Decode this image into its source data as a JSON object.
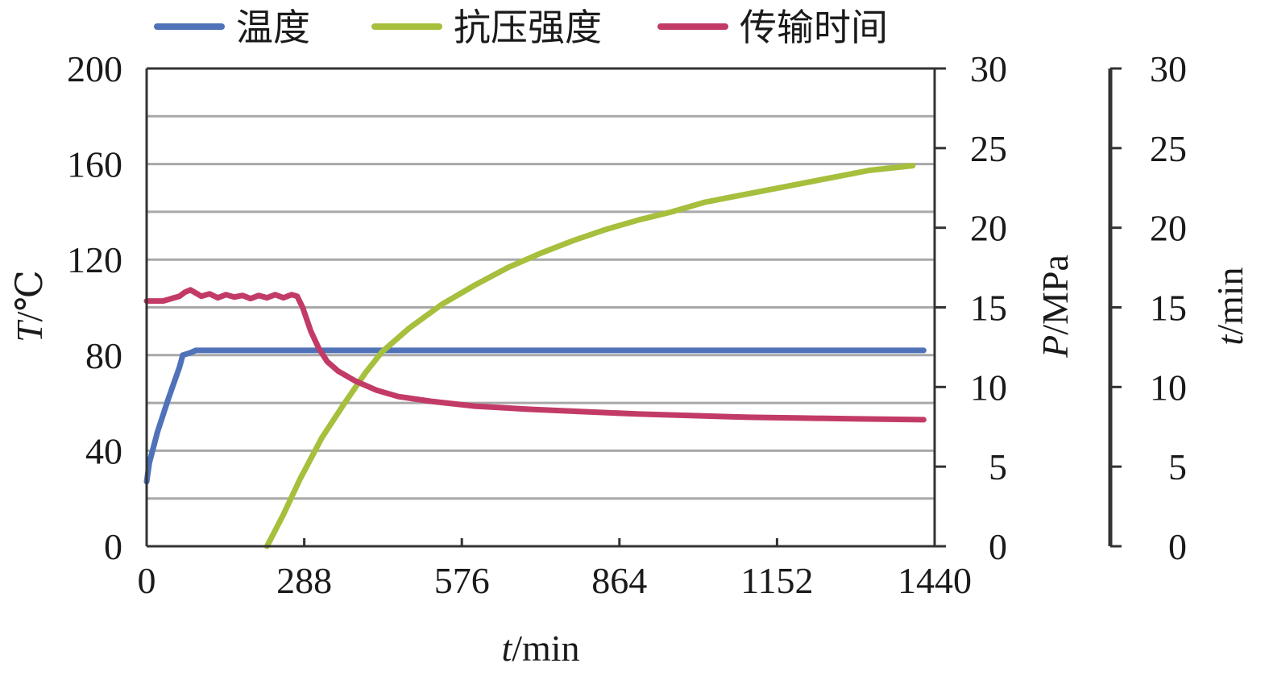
{
  "chart_data": {
    "type": "line",
    "x_axis": {
      "var": "t",
      "unit": "/min",
      "range": [
        0,
        1440
      ],
      "ticks": [
        "0",
        "288",
        "576",
        "864",
        "1152",
        "1440"
      ]
    },
    "y_axes": [
      {
        "id": "temp",
        "var": "T",
        "unit": "/℃",
        "range": [
          0,
          200
        ],
        "ticks": [
          "0",
          "40",
          "80",
          "120",
          "160",
          "200"
        ],
        "minor_gridlines": true
      },
      {
        "id": "pressure",
        "var": "P",
        "unit": "/MPa",
        "range": [
          0,
          30
        ],
        "ticks": [
          "0",
          "5",
          "10",
          "15",
          "20",
          "25",
          "30"
        ]
      },
      {
        "id": "time",
        "var": "t",
        "unit": "/min",
        "range": [
          0,
          30
        ],
        "ticks": [
          "0",
          "5",
          "10",
          "15",
          "20",
          "25",
          "30"
        ]
      }
    ],
    "legend_position": "top",
    "series": [
      {
        "name": "温度",
        "axis": "temp",
        "color": "#4f72b8",
        "points": [
          [
            0,
            27
          ],
          [
            5,
            35
          ],
          [
            20,
            48
          ],
          [
            40,
            62
          ],
          [
            60,
            75
          ],
          [
            66,
            80
          ],
          [
            80,
            81
          ],
          [
            90,
            82
          ],
          [
            100,
            82
          ],
          [
            300,
            82
          ],
          [
            600,
            82
          ],
          [
            900,
            82
          ],
          [
            1200,
            82
          ],
          [
            1420,
            82
          ]
        ]
      },
      {
        "name": "抗压强度",
        "axis": "pressure",
        "color": "#a6bf3c",
        "points": [
          [
            220,
            0
          ],
          [
            250,
            2
          ],
          [
            280,
            4.2
          ],
          [
            320,
            6.8
          ],
          [
            360,
            8.9
          ],
          [
            400,
            10.9
          ],
          [
            430,
            12.2
          ],
          [
            480,
            13.7
          ],
          [
            540,
            15.2
          ],
          [
            600,
            16.4
          ],
          [
            660,
            17.5
          ],
          [
            720,
            18.4
          ],
          [
            780,
            19.2
          ],
          [
            840,
            19.9
          ],
          [
            900,
            20.5
          ],
          [
            960,
            21.0
          ],
          [
            1020,
            21.6
          ],
          [
            1080,
            22.0
          ],
          [
            1140,
            22.4
          ],
          [
            1200,
            22.8
          ],
          [
            1260,
            23.2
          ],
          [
            1320,
            23.6
          ],
          [
            1400,
            23.9
          ]
        ]
      },
      {
        "name": "传输时间",
        "axis": "time",
        "color": "#c23b66",
        "points": [
          [
            0,
            15.4
          ],
          [
            30,
            15.4
          ],
          [
            50,
            15.6
          ],
          [
            60,
            15.7
          ],
          [
            70,
            15.95
          ],
          [
            80,
            16.1
          ],
          [
            90,
            15.9
          ],
          [
            100,
            15.7
          ],
          [
            115,
            15.85
          ],
          [
            130,
            15.6
          ],
          [
            145,
            15.8
          ],
          [
            160,
            15.65
          ],
          [
            175,
            15.75
          ],
          [
            190,
            15.55
          ],
          [
            205,
            15.75
          ],
          [
            220,
            15.6
          ],
          [
            235,
            15.8
          ],
          [
            250,
            15.6
          ],
          [
            265,
            15.8
          ],
          [
            275,
            15.7
          ],
          [
            285,
            15.0
          ],
          [
            300,
            13.5
          ],
          [
            315,
            12.4
          ],
          [
            330,
            11.6
          ],
          [
            350,
            11.0
          ],
          [
            380,
            10.4
          ],
          [
            420,
            9.8
          ],
          [
            460,
            9.4
          ],
          [
            520,
            9.1
          ],
          [
            600,
            8.8
          ],
          [
            700,
            8.6
          ],
          [
            800,
            8.45
          ],
          [
            900,
            8.3
          ],
          [
            1000,
            8.2
          ],
          [
            1100,
            8.1
          ],
          [
            1200,
            8.05
          ],
          [
            1300,
            8.0
          ],
          [
            1420,
            7.95
          ]
        ]
      }
    ]
  }
}
